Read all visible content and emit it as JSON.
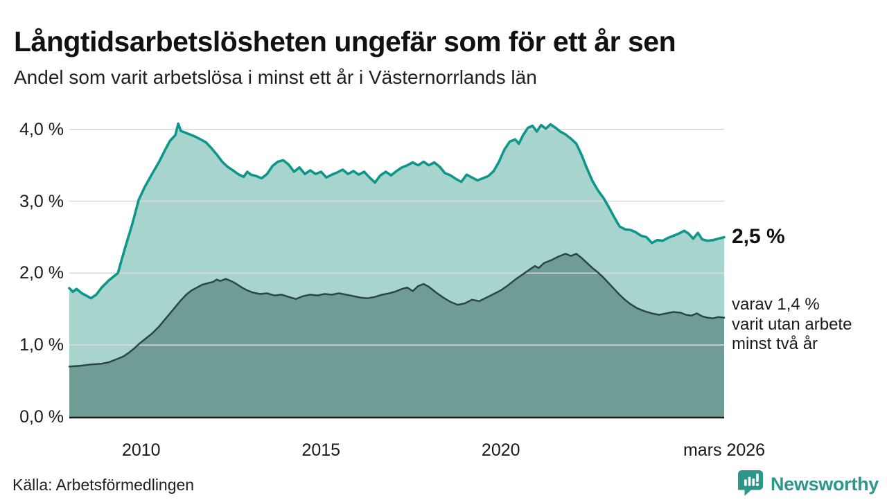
{
  "annotations": {
    "latest_value": "2,5 %",
    "secondary_line1": "varav 1,4 %",
    "secondary_line2": "varit utan arbete",
    "secondary_line3": "minst två år"
  },
  "footer": {
    "source": "Källa: Arbetsförmedlingen",
    "logo_text": "Newsworthy"
  },
  "colors": {
    "grid": "#d8dada",
    "axis": "#1b1b1b",
    "text": "#1a1a1a",
    "logo_teal": "#2d968b"
  },
  "chart_data": {
    "type": "area",
    "title": "Långtidsarbetslösheten ungefär som för ett år sen",
    "subtitle": "Andel som varit arbetslösa i minst ett år i Västernorrlands län",
    "unit": "%",
    "grid": true,
    "legend_position": "right-annotations",
    "x_domain": [
      2008.0,
      2026.21
    ],
    "ylim": [
      0,
      4.3
    ],
    "yticks": [
      {
        "value": 0,
        "label": "0,0 %"
      },
      {
        "value": 1,
        "label": "1,0 %"
      },
      {
        "value": 2,
        "label": "2,0 %"
      },
      {
        "value": 3,
        "label": "3,0 %"
      },
      {
        "value": 4,
        "label": "4,0 %"
      }
    ],
    "xticks": [
      {
        "x": 2010,
        "label": "2010"
      },
      {
        "x": 2015,
        "label": "2015"
      },
      {
        "x": 2020,
        "label": "2020"
      },
      {
        "x": 2026.21,
        "label": "mars 2026"
      }
    ],
    "series": [
      {
        "name": "Arbetslösa minst ett år",
        "end_label": "2,5 %",
        "latest": 2.5,
        "line_color": "#0f968a",
        "fill_color": "#a7d4cc",
        "line_width": 3.6,
        "points": [
          [
            2008.0,
            1.79
          ],
          [
            2008.1,
            1.74
          ],
          [
            2008.2,
            1.78
          ],
          [
            2008.35,
            1.72
          ],
          [
            2008.5,
            1.68
          ],
          [
            2008.6,
            1.65
          ],
          [
            2008.75,
            1.7
          ],
          [
            2008.9,
            1.8
          ],
          [
            2009.1,
            1.9
          ],
          [
            2009.35,
            2.0
          ],
          [
            2009.55,
            2.35
          ],
          [
            2009.75,
            2.68
          ],
          [
            2009.93,
            3.02
          ],
          [
            2010.1,
            3.2
          ],
          [
            2010.3,
            3.38
          ],
          [
            2010.5,
            3.55
          ],
          [
            2010.65,
            3.7
          ],
          [
            2010.8,
            3.84
          ],
          [
            2010.95,
            3.92
          ],
          [
            2011.03,
            4.08
          ],
          [
            2011.1,
            3.98
          ],
          [
            2011.2,
            3.96
          ],
          [
            2011.35,
            3.93
          ],
          [
            2011.5,
            3.9
          ],
          [
            2011.65,
            3.86
          ],
          [
            2011.8,
            3.82
          ],
          [
            2011.95,
            3.74
          ],
          [
            2012.1,
            3.65
          ],
          [
            2012.25,
            3.55
          ],
          [
            2012.4,
            3.48
          ],
          [
            2012.55,
            3.43
          ],
          [
            2012.72,
            3.37
          ],
          [
            2012.85,
            3.34
          ],
          [
            2012.95,
            3.41
          ],
          [
            2013.05,
            3.37
          ],
          [
            2013.2,
            3.35
          ],
          [
            2013.35,
            3.32
          ],
          [
            2013.5,
            3.38
          ],
          [
            2013.65,
            3.49
          ],
          [
            2013.8,
            3.55
          ],
          [
            2013.95,
            3.57
          ],
          [
            2014.1,
            3.51
          ],
          [
            2014.25,
            3.41
          ],
          [
            2014.4,
            3.47
          ],
          [
            2014.55,
            3.38
          ],
          [
            2014.7,
            3.43
          ],
          [
            2014.85,
            3.38
          ],
          [
            2015.0,
            3.41
          ],
          [
            2015.15,
            3.33
          ],
          [
            2015.3,
            3.37
          ],
          [
            2015.45,
            3.4
          ],
          [
            2015.6,
            3.44
          ],
          [
            2015.75,
            3.38
          ],
          [
            2015.9,
            3.42
          ],
          [
            2016.05,
            3.37
          ],
          [
            2016.2,
            3.41
          ],
          [
            2016.35,
            3.33
          ],
          [
            2016.5,
            3.26
          ],
          [
            2016.65,
            3.36
          ],
          [
            2016.8,
            3.41
          ],
          [
            2016.95,
            3.36
          ],
          [
            2017.1,
            3.42
          ],
          [
            2017.25,
            3.47
          ],
          [
            2017.4,
            3.5
          ],
          [
            2017.55,
            3.54
          ],
          [
            2017.7,
            3.5
          ],
          [
            2017.85,
            3.55
          ],
          [
            2018.0,
            3.5
          ],
          [
            2018.15,
            3.54
          ],
          [
            2018.3,
            3.48
          ],
          [
            2018.45,
            3.39
          ],
          [
            2018.6,
            3.36
          ],
          [
            2018.75,
            3.31
          ],
          [
            2018.9,
            3.27
          ],
          [
            2019.05,
            3.37
          ],
          [
            2019.2,
            3.33
          ],
          [
            2019.35,
            3.29
          ],
          [
            2019.5,
            3.32
          ],
          [
            2019.65,
            3.35
          ],
          [
            2019.8,
            3.42
          ],
          [
            2019.95,
            3.55
          ],
          [
            2020.1,
            3.72
          ],
          [
            2020.25,
            3.83
          ],
          [
            2020.4,
            3.86
          ],
          [
            2020.5,
            3.8
          ],
          [
            2020.62,
            3.92
          ],
          [
            2020.75,
            4.02
          ],
          [
            2020.88,
            4.05
          ],
          [
            2021.0,
            3.97
          ],
          [
            2021.12,
            4.06
          ],
          [
            2021.25,
            4.01
          ],
          [
            2021.38,
            4.07
          ],
          [
            2021.5,
            4.03
          ],
          [
            2021.65,
            3.97
          ],
          [
            2021.8,
            3.93
          ],
          [
            2021.95,
            3.87
          ],
          [
            2022.1,
            3.8
          ],
          [
            2022.25,
            3.64
          ],
          [
            2022.4,
            3.45
          ],
          [
            2022.55,
            3.28
          ],
          [
            2022.7,
            3.15
          ],
          [
            2022.85,
            3.05
          ],
          [
            2023.0,
            2.92
          ],
          [
            2023.15,
            2.78
          ],
          [
            2023.3,
            2.65
          ],
          [
            2023.45,
            2.61
          ],
          [
            2023.6,
            2.6
          ],
          [
            2023.75,
            2.57
          ],
          [
            2023.9,
            2.52
          ],
          [
            2024.05,
            2.5
          ],
          [
            2024.2,
            2.42
          ],
          [
            2024.35,
            2.46
          ],
          [
            2024.5,
            2.45
          ],
          [
            2024.65,
            2.49
          ],
          [
            2024.8,
            2.52
          ],
          [
            2024.95,
            2.55
          ],
          [
            2025.1,
            2.59
          ],
          [
            2025.22,
            2.55
          ],
          [
            2025.35,
            2.48
          ],
          [
            2025.48,
            2.56
          ],
          [
            2025.6,
            2.47
          ],
          [
            2025.75,
            2.45
          ],
          [
            2025.9,
            2.46
          ],
          [
            2026.05,
            2.48
          ],
          [
            2026.21,
            2.5
          ]
        ]
      },
      {
        "name": "varav utan arbete minst två år",
        "end_label": "1,4 %",
        "latest": 1.4,
        "line_color": "#2c4642",
        "fill_color": "#6f9c95",
        "line_width": 2.5,
        "points": [
          [
            2008.0,
            0.7
          ],
          [
            2008.3,
            0.71
          ],
          [
            2008.6,
            0.73
          ],
          [
            2008.9,
            0.74
          ],
          [
            2009.1,
            0.76
          ],
          [
            2009.3,
            0.8
          ],
          [
            2009.5,
            0.84
          ],
          [
            2009.65,
            0.89
          ],
          [
            2009.8,
            0.95
          ],
          [
            2009.95,
            1.02
          ],
          [
            2010.1,
            1.08
          ],
          [
            2010.3,
            1.16
          ],
          [
            2010.5,
            1.26
          ],
          [
            2010.7,
            1.38
          ],
          [
            2010.9,
            1.5
          ],
          [
            2011.1,
            1.62
          ],
          [
            2011.25,
            1.7
          ],
          [
            2011.4,
            1.76
          ],
          [
            2011.55,
            1.8
          ],
          [
            2011.7,
            1.84
          ],
          [
            2011.85,
            1.86
          ],
          [
            2012.0,
            1.88
          ],
          [
            2012.1,
            1.91
          ],
          [
            2012.2,
            1.89
          ],
          [
            2012.35,
            1.92
          ],
          [
            2012.5,
            1.89
          ],
          [
            2012.65,
            1.85
          ],
          [
            2012.8,
            1.8
          ],
          [
            2012.95,
            1.76
          ],
          [
            2013.1,
            1.73
          ],
          [
            2013.3,
            1.71
          ],
          [
            2013.5,
            1.72
          ],
          [
            2013.7,
            1.69
          ],
          [
            2013.9,
            1.7
          ],
          [
            2014.1,
            1.67
          ],
          [
            2014.3,
            1.64
          ],
          [
            2014.5,
            1.68
          ],
          [
            2014.7,
            1.7
          ],
          [
            2014.9,
            1.69
          ],
          [
            2015.1,
            1.71
          ],
          [
            2015.3,
            1.7
          ],
          [
            2015.5,
            1.72
          ],
          [
            2015.7,
            1.7
          ],
          [
            2015.9,
            1.68
          ],
          [
            2016.1,
            1.66
          ],
          [
            2016.3,
            1.65
          ],
          [
            2016.5,
            1.67
          ],
          [
            2016.7,
            1.7
          ],
          [
            2016.9,
            1.72
          ],
          [
            2017.1,
            1.75
          ],
          [
            2017.25,
            1.78
          ],
          [
            2017.4,
            1.8
          ],
          [
            2017.55,
            1.75
          ],
          [
            2017.7,
            1.82
          ],
          [
            2017.85,
            1.85
          ],
          [
            2018.0,
            1.81
          ],
          [
            2018.2,
            1.73
          ],
          [
            2018.4,
            1.66
          ],
          [
            2018.6,
            1.6
          ],
          [
            2018.8,
            1.56
          ],
          [
            2019.0,
            1.58
          ],
          [
            2019.2,
            1.63
          ],
          [
            2019.4,
            1.61
          ],
          [
            2019.6,
            1.66
          ],
          [
            2019.8,
            1.71
          ],
          [
            2020.0,
            1.76
          ],
          [
            2020.2,
            1.83
          ],
          [
            2020.4,
            1.91
          ],
          [
            2020.6,
            1.98
          ],
          [
            2020.8,
            2.05
          ],
          [
            2020.95,
            2.1
          ],
          [
            2021.05,
            2.07
          ],
          [
            2021.2,
            2.14
          ],
          [
            2021.4,
            2.18
          ],
          [
            2021.6,
            2.23
          ],
          [
            2021.8,
            2.27
          ],
          [
            2021.95,
            2.24
          ],
          [
            2022.1,
            2.27
          ],
          [
            2022.25,
            2.21
          ],
          [
            2022.4,
            2.14
          ],
          [
            2022.55,
            2.07
          ],
          [
            2022.7,
            2.01
          ],
          [
            2022.85,
            1.94
          ],
          [
            2023.0,
            1.86
          ],
          [
            2023.15,
            1.78
          ],
          [
            2023.3,
            1.7
          ],
          [
            2023.45,
            1.63
          ],
          [
            2023.6,
            1.57
          ],
          [
            2023.8,
            1.51
          ],
          [
            2024.0,
            1.47
          ],
          [
            2024.2,
            1.44
          ],
          [
            2024.4,
            1.42
          ],
          [
            2024.6,
            1.44
          ],
          [
            2024.8,
            1.46
          ],
          [
            2025.0,
            1.45
          ],
          [
            2025.15,
            1.42
          ],
          [
            2025.3,
            1.41
          ],
          [
            2025.45,
            1.44
          ],
          [
            2025.6,
            1.4
          ],
          [
            2025.75,
            1.38
          ],
          [
            2025.9,
            1.37
          ],
          [
            2026.05,
            1.39
          ],
          [
            2026.21,
            1.38
          ]
        ]
      }
    ]
  }
}
